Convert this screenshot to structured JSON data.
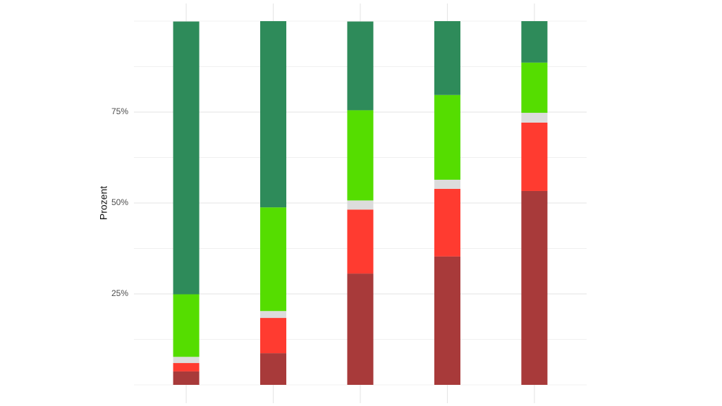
{
  "chart_data": {
    "type": "stacked_bar",
    "y_label": "Prozent",
    "categories": [
      null,
      null,
      null,
      null,
      null
    ],
    "series": [
      {
        "color": "#a83a3a",
        "values": [
          3.7,
          8.7,
          30.6,
          35.3,
          53.3
        ]
      },
      {
        "color": "#ff3b30",
        "values": [
          2.3,
          9.7,
          17.6,
          18.6,
          18.8
        ]
      },
      {
        "color": "#dcdcdc",
        "values": [
          1.7,
          1.9,
          2.5,
          2.5,
          2.7
        ]
      },
      {
        "color": "#55dd00",
        "values": [
          17.2,
          28.5,
          24.8,
          23.3,
          13.8
        ]
      },
      {
        "color": "#2e8b5a",
        "values": [
          75.0,
          51.2,
          24.4,
          20.3,
          11.4
        ]
      }
    ],
    "ylim": [
      0,
      100
    ],
    "yticks": [
      {
        "value": 25,
        "label": "25%"
      },
      {
        "value": 50,
        "label": "50%"
      },
      {
        "value": 75,
        "label": "75%"
      }
    ],
    "minor_yticks": [
      0,
      12.5,
      37.5,
      62.5,
      87.5,
      100
    ],
    "grid": true
  }
}
